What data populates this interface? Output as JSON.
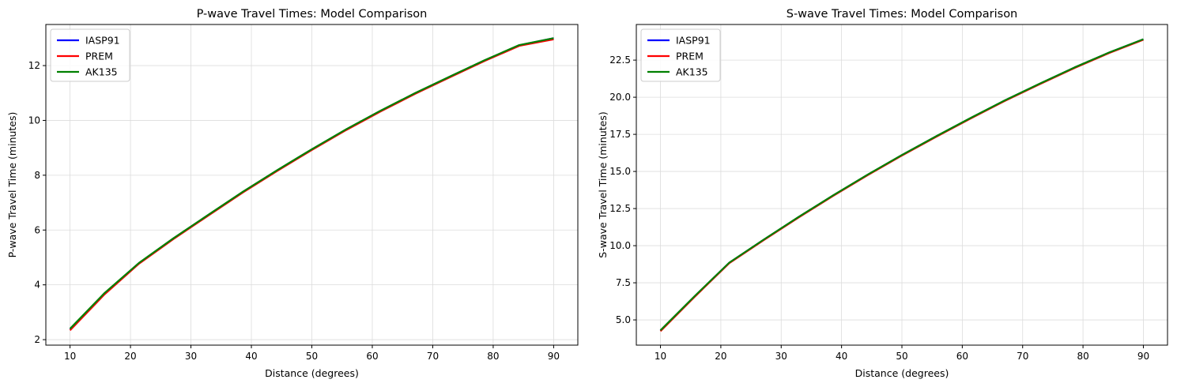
{
  "chart_data": [
    {
      "type": "line",
      "title": "P-wave Travel Times: Model Comparison",
      "xlabel": "Distance (degrees)",
      "ylabel": "P-wave Travel Time (minutes)",
      "xlim": [
        6,
        94
      ],
      "ylim": [
        1.8,
        13.5
      ],
      "xticks": [
        10,
        20,
        30,
        40,
        50,
        60,
        70,
        80,
        90
      ],
      "yticks": [
        2,
        4,
        6,
        8,
        10,
        12
      ],
      "grid": true,
      "legend": "top-left",
      "x": [
        10,
        15.7,
        21.4,
        27.1,
        32.9,
        38.6,
        44.3,
        50,
        55.7,
        61.4,
        67.1,
        72.9,
        78.6,
        84.3,
        90
      ],
      "series": [
        {
          "name": "IASP91",
          "color": "#0000ff",
          "values": [
            2.38,
            3.68,
            4.79,
            5.69,
            6.55,
            7.39,
            8.18,
            8.94,
            9.67,
            10.35,
            10.99,
            11.6,
            12.19,
            12.74,
            13.0
          ]
        },
        {
          "name": "PREM",
          "color": "#ff0000",
          "values": [
            2.34,
            3.65,
            4.77,
            5.67,
            6.53,
            7.37,
            8.16,
            8.92,
            9.65,
            10.33,
            10.97,
            11.58,
            12.17,
            12.72,
            12.96
          ]
        },
        {
          "name": "AK135",
          "color": "#008000",
          "values": [
            2.4,
            3.7,
            4.8,
            5.7,
            6.56,
            7.4,
            8.19,
            8.95,
            9.68,
            10.36,
            11.0,
            11.61,
            12.2,
            12.75,
            13.0
          ]
        }
      ]
    },
    {
      "type": "line",
      "title": "S-wave Travel Times: Model Comparison",
      "xlabel": "Distance (degrees)",
      "ylabel": "S-wave Travel Time (minutes)",
      "xlim": [
        6,
        94
      ],
      "ylim": [
        3.3,
        24.9
      ],
      "xticks": [
        10,
        20,
        30,
        40,
        50,
        60,
        70,
        80,
        90
      ],
      "yticks": [
        5.0,
        7.5,
        10.0,
        12.5,
        15.0,
        17.5,
        20.0,
        22.5
      ],
      "grid": true,
      "legend": "top-left",
      "x": [
        10,
        15.7,
        21.4,
        27.1,
        32.9,
        38.6,
        44.3,
        50,
        55.7,
        61.4,
        67.1,
        72.9,
        78.6,
        84.3,
        90
      ],
      "series": [
        {
          "name": "IASP91",
          "color": "#0000ff",
          "values": [
            4.28,
            6.6,
            8.85,
            10.4,
            11.93,
            13.38,
            14.77,
            16.1,
            17.37,
            18.6,
            19.79,
            20.92,
            22.0,
            23.0,
            23.9
          ]
        },
        {
          "name": "PREM",
          "color": "#ff0000",
          "values": [
            4.24,
            6.57,
            8.82,
            10.37,
            11.9,
            13.35,
            14.74,
            16.07,
            17.34,
            18.57,
            19.76,
            20.89,
            21.97,
            22.97,
            23.87
          ]
        },
        {
          "name": "AK135",
          "color": "#008000",
          "values": [
            4.3,
            6.62,
            8.86,
            10.41,
            11.94,
            13.39,
            14.78,
            16.11,
            17.38,
            18.61,
            19.8,
            20.93,
            22.01,
            23.01,
            23.91
          ]
        }
      ]
    }
  ]
}
